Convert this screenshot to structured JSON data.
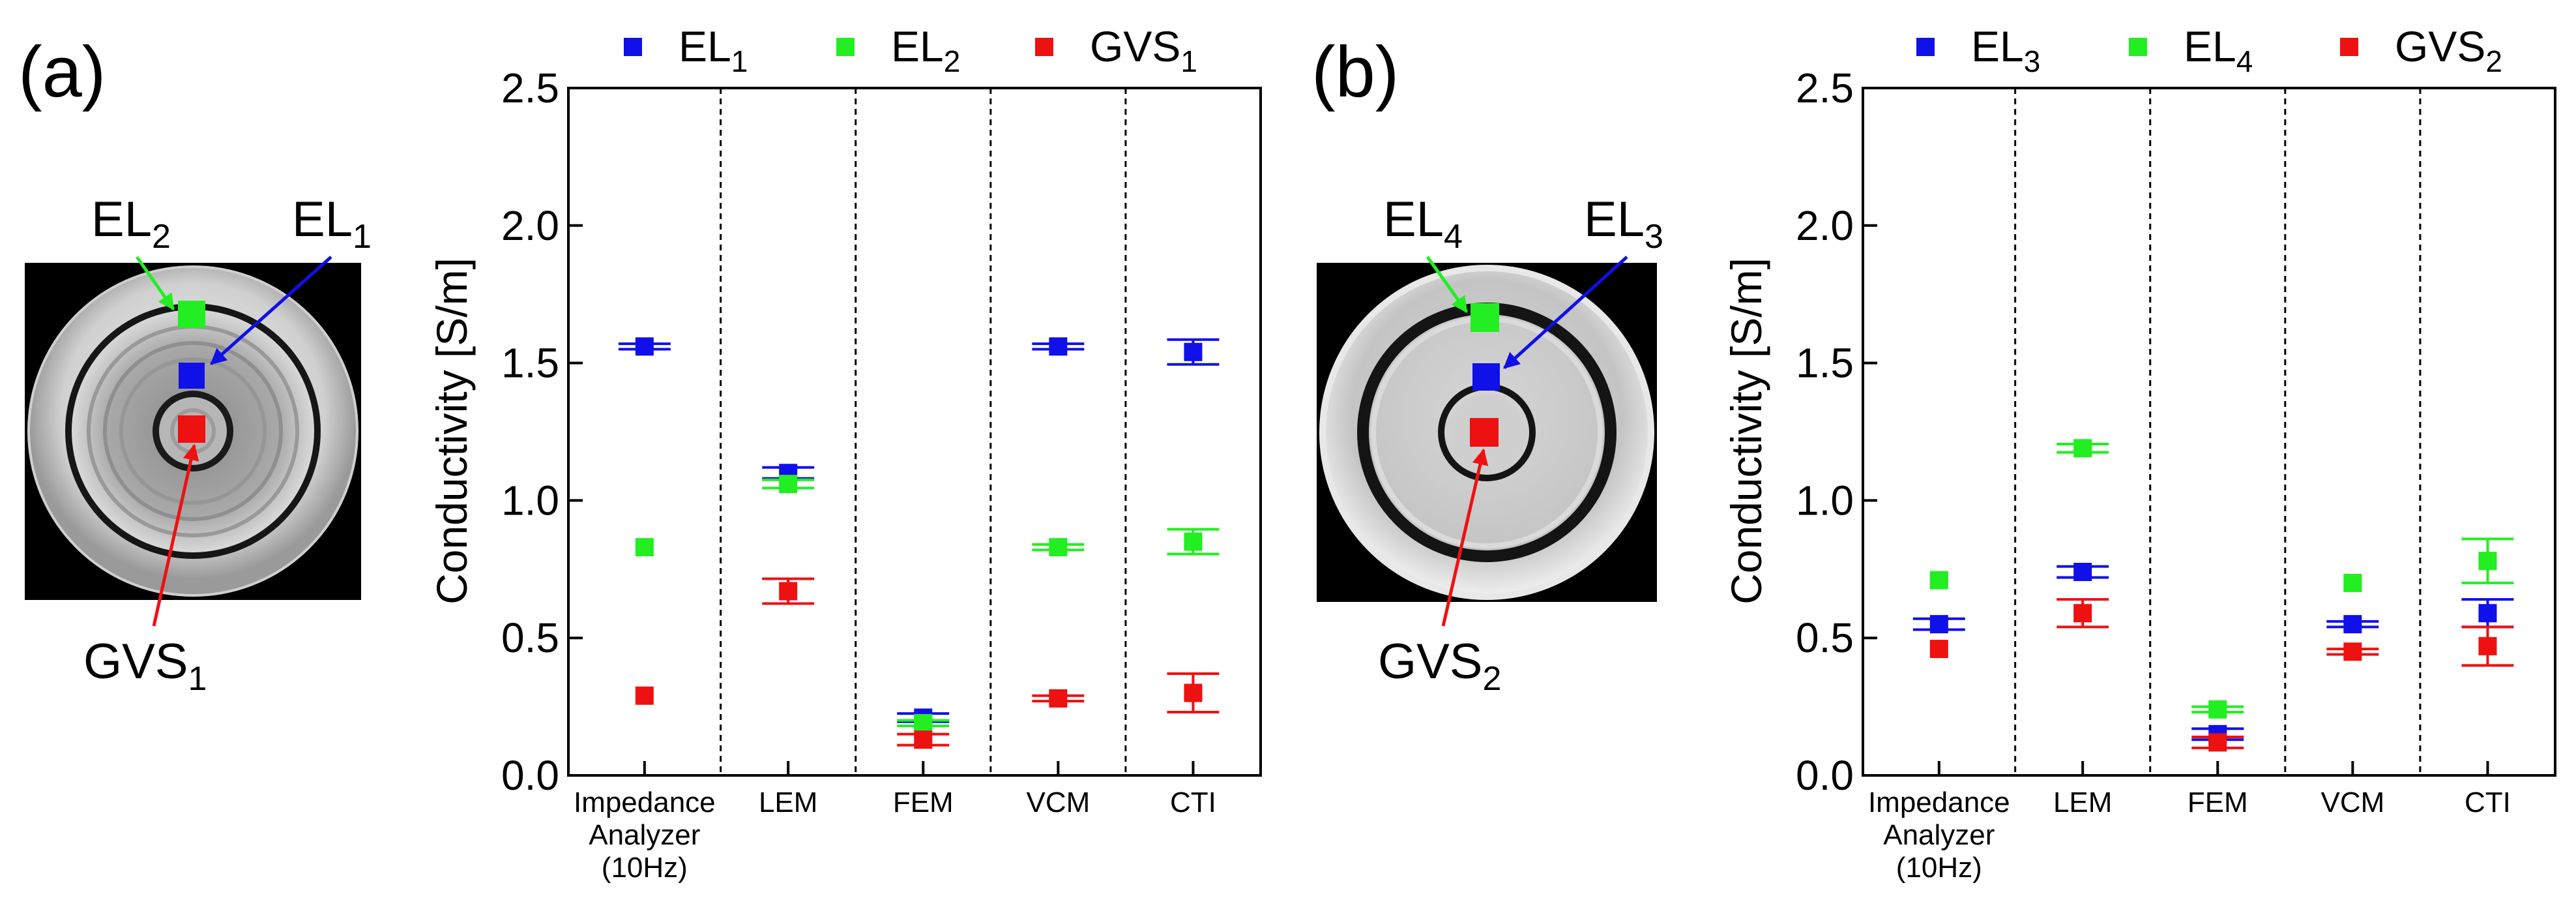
{
  "figure": {
    "panels": [
      {
        "label": "(a)",
        "image": {
          "kind": "phantom-a",
          "annotations": [
            {
              "base": "EL",
              "sub": "2",
              "color": "#22ee22"
            },
            {
              "base": "EL",
              "sub": "1",
              "color": "#1010e8"
            },
            {
              "base": "GVS",
              "sub": "1",
              "color": "#ee1111"
            }
          ]
        }
      },
      {
        "label": "(b)",
        "image": {
          "kind": "phantom-b",
          "annotations": [
            {
              "base": "EL",
              "sub": "4",
              "color": "#22ee22"
            },
            {
              "base": "EL",
              "sub": "3",
              "color": "#1010e8"
            },
            {
              "base": "GVS",
              "sub": "2",
              "color": "#ee1111"
            }
          ]
        }
      }
    ]
  },
  "chart_data": [
    {
      "type": "scatter",
      "title": "",
      "xlabel": "",
      "ylabel": "Conductivity [S/m]",
      "ylim": [
        0,
        2.5
      ],
      "yticks": [
        "0.0",
        "0.5",
        "1.0",
        "1.5",
        "2.0",
        "2.5"
      ],
      "categories": [
        [
          "Impedance",
          "Analyzer",
          "(10Hz)"
        ],
        [
          "LEM"
        ],
        [
          "FEM"
        ],
        [
          "VCM"
        ],
        [
          "CTI"
        ]
      ],
      "legend_position": "top",
      "series": [
        {
          "name": "EL",
          "sub": "1",
          "color": "#1010e8",
          "values": [
            1.56,
            1.1,
            0.21,
            1.56,
            1.54
          ],
          "errors": [
            0.01,
            0.02,
            0.015,
            0.01,
            0.045
          ]
        },
        {
          "name": "EL",
          "sub": "2",
          "color": "#22ee22",
          "values": [
            0.83,
            1.06,
            0.19,
            0.83,
            0.85
          ],
          "errors": [
            0.0,
            0.015,
            0.01,
            0.01,
            0.045
          ]
        },
        {
          "name": "GVS",
          "sub": "1",
          "color": "#ee1111",
          "values": [
            0.29,
            0.67,
            0.13,
            0.28,
            0.3
          ],
          "errors": [
            0.0,
            0.045,
            0.02,
            0.01,
            0.07
          ]
        }
      ]
    },
    {
      "type": "scatter",
      "title": "",
      "xlabel": "",
      "ylabel": "Conductivity [S/m]",
      "ylim": [
        0,
        2.5
      ],
      "yticks": [
        "0.0",
        "0.5",
        "1.0",
        "1.5",
        "2.0",
        "2.5"
      ],
      "categories": [
        [
          "Impedance",
          "Analyzer",
          "(10Hz)"
        ],
        [
          "LEM"
        ],
        [
          "FEM"
        ],
        [
          "VCM"
        ],
        [
          "CTI"
        ]
      ],
      "legend_position": "top",
      "series": [
        {
          "name": "EL",
          "sub": "3",
          "color": "#1010e8",
          "values": [
            0.55,
            0.74,
            0.15,
            0.55,
            0.59
          ],
          "errors": [
            0.02,
            0.02,
            0.02,
            0.01,
            0.05
          ]
        },
        {
          "name": "EL",
          "sub": "4",
          "color": "#22ee22",
          "values": [
            0.71,
            1.19,
            0.24,
            0.7,
            0.78
          ],
          "errors": [
            0.0,
            0.015,
            0.01,
            0.0,
            0.08
          ]
        },
        {
          "name": "GVS",
          "sub": "2",
          "color": "#ee1111",
          "values": [
            0.46,
            0.59,
            0.12,
            0.45,
            0.47
          ],
          "errors": [
            0.0,
            0.05,
            0.02,
            0.01,
            0.07
          ]
        }
      ]
    }
  ]
}
